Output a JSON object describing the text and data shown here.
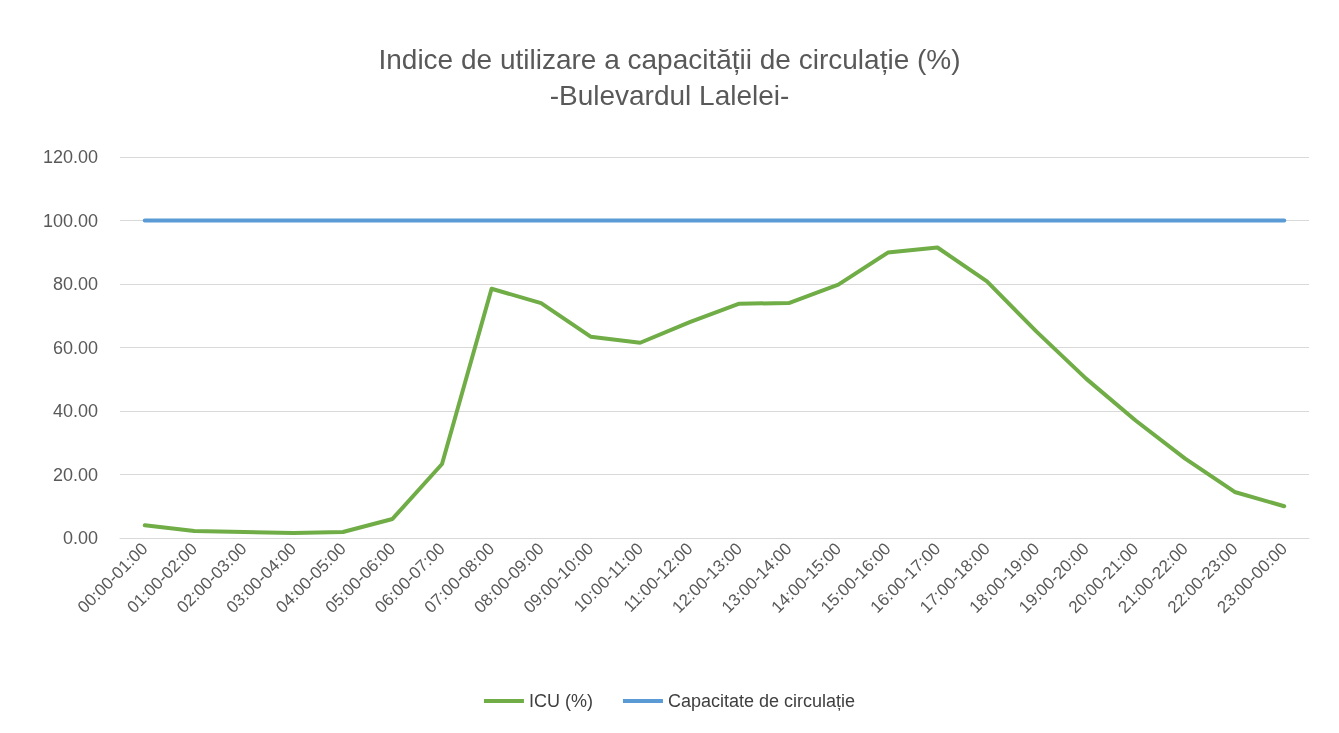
{
  "chart_data": {
    "type": "line",
    "title": "Indice de utilizare a capacității de circulație (%)",
    "subtitle": "-Bulevardul Lalelei-",
    "categories": [
      "00:00-01:00",
      "01:00-02:00",
      "02:00-03:00",
      "03:00-04:00",
      "04:00-05:00",
      "05:00-06:00",
      "06:00-07:00",
      "07:00-08:00",
      "08:00-09:00",
      "09:00-10:00",
      "10:00-11:00",
      "11:00-12:00",
      "12:00-13:00",
      "13:00-14:00",
      "14:00-15:00",
      "15:00-16:00",
      "16:00-17:00",
      "17:00-18:00",
      "18:00-19:00",
      "19:00-20:00",
      "20:00-21:00",
      "21:00-22:00",
      "22:00-23:00",
      "23:00-00:00"
    ],
    "series": [
      {
        "name": "ICU (%)",
        "color": "#70ad47",
        "values": [
          4,
          2.2,
          1.9,
          1.6,
          1.9,
          6,
          23.3,
          78.5,
          74,
          63.4,
          61.5,
          68,
          73.8,
          74,
          79.8,
          89.9,
          91.5,
          80.8,
          65,
          50.2,
          37,
          25,
          14.5,
          10
        ]
      },
      {
        "name": "Capacitate de circulație",
        "color": "#5b9bd5",
        "values": [
          100,
          100,
          100,
          100,
          100,
          100,
          100,
          100,
          100,
          100,
          100,
          100,
          100,
          100,
          100,
          100,
          100,
          100,
          100,
          100,
          100,
          100,
          100,
          100
        ]
      }
    ],
    "ylim": [
      0,
      120
    ],
    "yticks": [
      {
        "value": 0,
        "label": "0.00"
      },
      {
        "value": 20,
        "label": "20.00"
      },
      {
        "value": 40,
        "label": "40.00"
      },
      {
        "value": 60,
        "label": "60.00"
      },
      {
        "value": 80,
        "label": "80.00"
      },
      {
        "value": 100,
        "label": "100.00"
      },
      {
        "value": 120,
        "label": "120.00"
      }
    ],
    "grid": "y",
    "legend": "bottom",
    "marker": "none",
    "line_style": "solid"
  }
}
